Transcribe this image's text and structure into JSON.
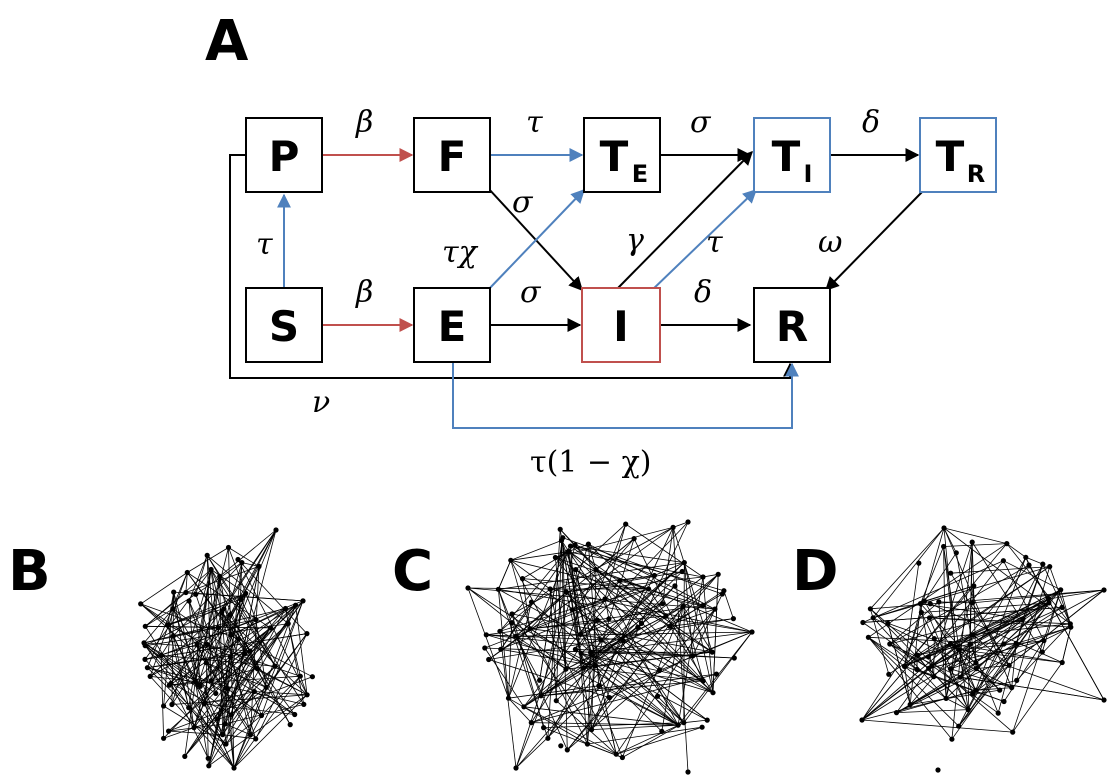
{
  "panels": {
    "A": "A",
    "B": "B",
    "C": "C",
    "D": "D"
  },
  "colors": {
    "black": "#000000",
    "red": "#c0504d",
    "blue": "#4f81bd"
  },
  "compartments": {
    "P": {
      "label": "P",
      "sub": ""
    },
    "F": {
      "label": "F",
      "sub": ""
    },
    "TE": {
      "label": "T",
      "sub": "E"
    },
    "TI": {
      "label": "T",
      "sub": "I"
    },
    "TR": {
      "label": "T",
      "sub": "R"
    },
    "S": {
      "label": "S",
      "sub": ""
    },
    "E": {
      "label": "E",
      "sub": ""
    },
    "I": {
      "label": "I",
      "sub": ""
    },
    "R": {
      "label": "R",
      "sub": ""
    }
  },
  "rates": {
    "P_F": "β",
    "F_TE": "τ",
    "TE_TI": "σ",
    "TI_TR": "δ",
    "F_I": "σ",
    "E_TE": "τχ",
    "I_TI_gamma": "γ",
    "I_TI_tau": "τ",
    "TR_R": "ω",
    "S_P": "τ",
    "S_E": "β",
    "E_I": "σ",
    "I_R": "δ",
    "P_R": "ν",
    "E_R": "τ(1 − χ)"
  }
}
